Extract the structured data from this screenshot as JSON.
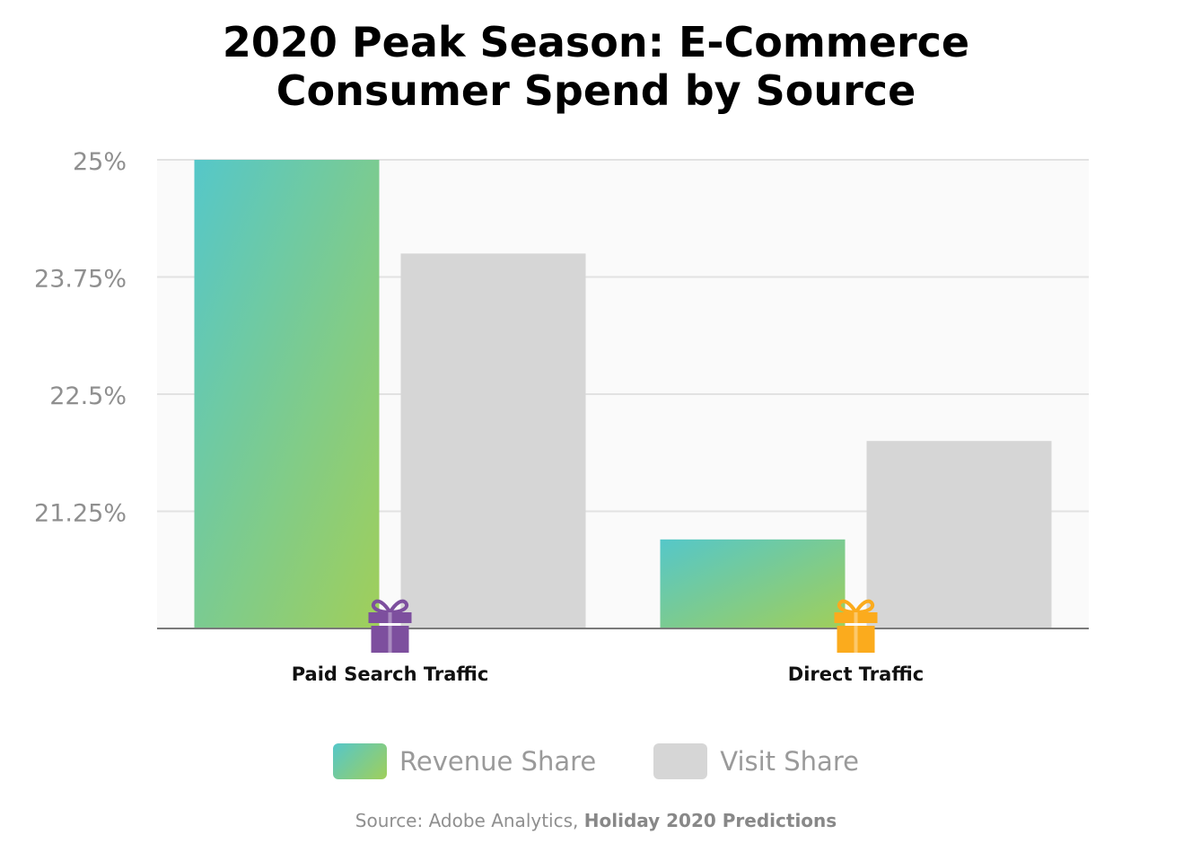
{
  "title_line1": "2020 Peak Season: E-Commerce",
  "title_line2": "Consumer Spend by Source",
  "chart_data": {
    "type": "bar",
    "categories": [
      "Paid Search Traffic",
      "Direct Traffic"
    ],
    "series": [
      {
        "name": "Revenue Share",
        "values": [
          25.0,
          20.95
        ],
        "color": "gradient #5bc8c8 to #9ccd5c"
      },
      {
        "name": "Visit Share",
        "values": [
          24.0,
          22.0
        ],
        "color": "#d6d6d6"
      }
    ],
    "ylim": [
      20.0,
      25.0
    ],
    "yticks": [
      21.25,
      22.5,
      23.75,
      25
    ],
    "ytick_labels": [
      "21.25%",
      "22.5%",
      "23.75%",
      "25%"
    ],
    "grid": true,
    "legend": "bottom",
    "category_icons": [
      {
        "name": "gift-icon",
        "color": "#7d4f9e"
      },
      {
        "name": "gift-icon",
        "color": "#fbab1d"
      }
    ]
  },
  "legend": {
    "revenue_label": "Revenue Share",
    "visit_label": "Visit Share"
  },
  "source": {
    "prefix": "Source: Adobe Analytics, ",
    "bold": "Holiday 2020 Predictions"
  }
}
